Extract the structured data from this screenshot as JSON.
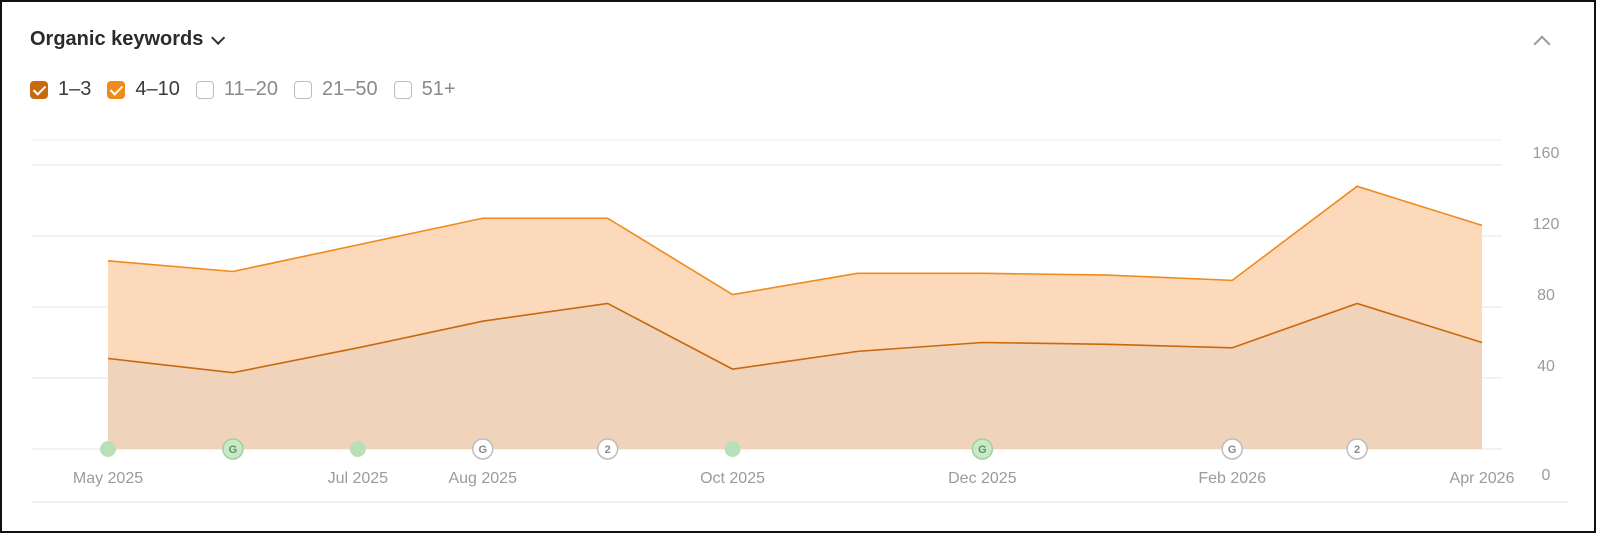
{
  "header": {
    "title": "Organic keywords"
  },
  "filters": [
    {
      "label": "1–3",
      "checked": true,
      "color": "#c8690d"
    },
    {
      "label": "4–10",
      "checked": true,
      "color": "#f08a1c"
    },
    {
      "label": "11–20",
      "checked": false,
      "color": ""
    },
    {
      "label": "21–50",
      "checked": false,
      "color": ""
    },
    {
      "label": "51+",
      "checked": false,
      "color": ""
    }
  ],
  "chart_data": {
    "type": "area",
    "stacked": true,
    "x": [
      "2025-05",
      "2025-06",
      "2025-07",
      "2025-08",
      "2025-09",
      "2025-10",
      "2025-11",
      "2025-12",
      "2026-01",
      "2026-02",
      "2026-03",
      "2026-04"
    ],
    "x_tick_labels": [
      {
        "x": "2025-05",
        "label": "May 2025"
      },
      {
        "x": "2025-07",
        "label": "Jul 2025"
      },
      {
        "x": "2025-08",
        "label": "Aug 2025"
      },
      {
        "x": "2025-10",
        "label": "Oct 2025"
      },
      {
        "x": "2025-12",
        "label": "Dec 2025"
      },
      {
        "x": "2026-02",
        "label": "Feb 2026"
      },
      {
        "x": "2026-04",
        "label": "Apr 2026"
      }
    ],
    "series": [
      {
        "key": "1-3",
        "color": "#c8690d",
        "fill": "#f0d3bb",
        "values": [
          51,
          43,
          57,
          72,
          82,
          45,
          55,
          60,
          59,
          57,
          82,
          60
        ]
      },
      {
        "key": "4-10",
        "color": "#f08a1c",
        "fill": "#fdd9bb",
        "values": [
          55,
          57,
          58,
          58,
          48,
          42,
          44,
          39,
          39,
          38,
          66,
          66
        ]
      }
    ],
    "yticks": [
      0,
      40,
      80,
      120,
      160
    ],
    "ylim": [
      0,
      172
    ],
    "grid": true,
    "axis_position": "right",
    "events": [
      {
        "x": "2025-05",
        "type": "dot",
        "label": ""
      },
      {
        "x": "2025-06",
        "type": "badge",
        "label": "G",
        "active": true
      },
      {
        "x": "2025-07",
        "type": "dot",
        "label": ""
      },
      {
        "x": "2025-08",
        "type": "badge",
        "label": "G",
        "active": false
      },
      {
        "x": "2025-09",
        "type": "badge",
        "label": "2",
        "active": false
      },
      {
        "x": "2025-10",
        "type": "dot",
        "label": ""
      },
      {
        "x": "2025-12",
        "type": "badge",
        "label": "G",
        "active": true
      },
      {
        "x": "2026-02",
        "type": "badge",
        "label": "G",
        "active": false
      },
      {
        "x": "2026-03",
        "type": "badge",
        "label": "2",
        "active": false
      }
    ]
  }
}
